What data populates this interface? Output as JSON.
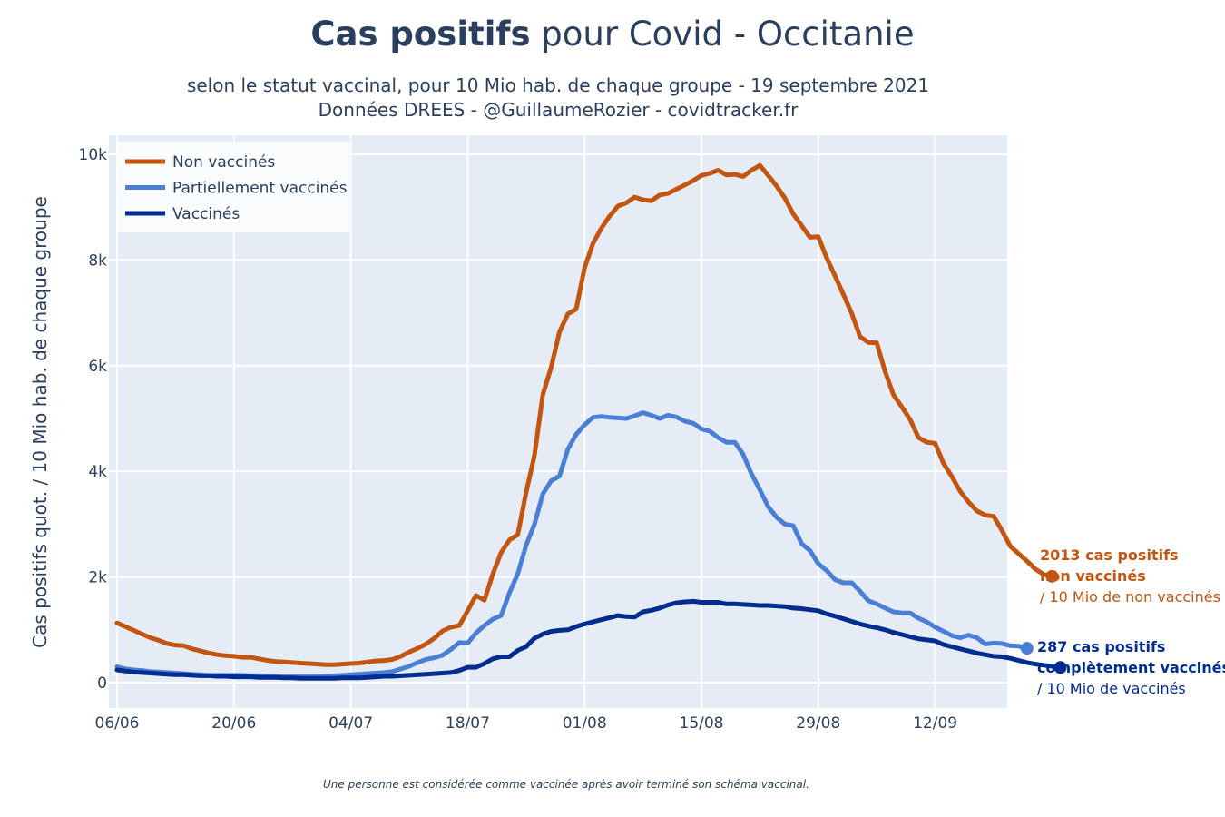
{
  "header": {
    "title_bold": "Cas positifs",
    "title_rest": " pour Covid - Occitanie",
    "subtitle_line1": "selon le statut vaccinal, pour 10 Mio hab. de chaque groupe - 19 septembre 2021",
    "subtitle_line2": "Données DREES - @GuillaumeRozier - covidtracker.fr"
  },
  "footnote": "Une personne est considérée comme vaccinée après avoir terminé son schéma vaccinal.",
  "annotations": {
    "non_vaccines": {
      "line1": "2013 cas positifs",
      "line2": "non vaccinés",
      "line3": "/ 10 Mio de non vaccinés",
      "color": "#c35510"
    },
    "vaccines": {
      "line1": "287 cas positifs",
      "line2": "complètement vaccinés",
      "line3": "/ 10 Mio de vaccinés",
      "color": "#002d8f"
    }
  },
  "chart_data": {
    "type": "line",
    "title": "Cas positifs pour Covid - Occitanie",
    "ylabel": "Cas positifs quot. / 10 Mio hab. de chaque groupe",
    "xlabel": "",
    "x_start": "06/06",
    "x_tick_labels": [
      "06/06",
      "20/06",
      "04/07",
      "18/07",
      "01/08",
      "15/08",
      "29/08",
      "12/09"
    ],
    "y_tick_labels": [
      "0",
      "2k",
      "4k",
      "6k",
      "8k",
      "10k"
    ],
    "y_ticks": [
      0,
      2000,
      4000,
      6000,
      8000,
      10000
    ],
    "ylim": [
      -400,
      10300
    ],
    "grid": true,
    "legend_position": "top-left",
    "plot_bg": "#e5ecf6",
    "series": [
      {
        "name": "Non vaccinés",
        "color": "#c35510",
        "values": [
          1130,
          1060,
          990,
          920,
          850,
          800,
          740,
          710,
          700,
          640,
          600,
          560,
          530,
          510,
          500,
          480,
          480,
          450,
          420,
          400,
          390,
          380,
          370,
          360,
          350,
          340,
          340,
          350,
          360,
          370,
          390,
          410,
          420,
          440,
          500,
          580,
          650,
          730,
          840,
          980,
          1050,
          1080,
          1360,
          1650,
          1560,
          2050,
          2460,
          2700,
          2800,
          3600,
          4300,
          5450,
          5970,
          6640,
          6980,
          7070,
          7850,
          8310,
          8600,
          8830,
          9020,
          9080,
          9190,
          9140,
          9120,
          9230,
          9260,
          9340,
          9420,
          9500,
          9600,
          9640,
          9700,
          9610,
          9620,
          9580,
          9700,
          9790,
          9600,
          9400,
          9170,
          8870,
          8650,
          8430,
          8440,
          8040,
          7700,
          7350,
          6990,
          6550,
          6440,
          6430,
          5890,
          5450,
          5220,
          4980,
          4640,
          4550,
          4530,
          4150,
          3900,
          3620,
          3420,
          3250,
          3170,
          3150,
          2880,
          2580,
          2440,
          2300,
          2150,
          2050,
          2013
        ]
      },
      {
        "name": "Partiellement vaccinés",
        "color": "#4a7fd8",
        "values": [
          300,
          260,
          240,
          230,
          210,
          200,
          190,
          180,
          170,
          160,
          150,
          140,
          140,
          140,
          140,
          140,
          130,
          130,
          120,
          120,
          110,
          110,
          110,
          110,
          110,
          120,
          130,
          140,
          150,
          160,
          170,
          180,
          190,
          210,
          260,
          310,
          380,
          440,
          470,
          520,
          630,
          760,
          750,
          940,
          1080,
          1200,
          1270,
          1700,
          2060,
          2600,
          3000,
          3570,
          3820,
          3910,
          4420,
          4700,
          4880,
          5020,
          5040,
          5020,
          5010,
          5000,
          5050,
          5110,
          5060,
          5000,
          5060,
          5030,
          4950,
          4910,
          4800,
          4760,
          4640,
          4550,
          4550,
          4320,
          3950,
          3650,
          3330,
          3130,
          3000,
          2970,
          2630,
          2500,
          2250,
          2120,
          1950,
          1890,
          1890,
          1730,
          1550,
          1490,
          1410,
          1340,
          1320,
          1320,
          1220,
          1150,
          1050,
          970,
          890,
          850,
          900,
          850,
          730,
          750,
          740,
          700,
          690,
          650
        ]
      },
      {
        "name": "Vaccinés",
        "color": "#002d8f",
        "values": [
          240,
          220,
          200,
          190,
          180,
          170,
          160,
          150,
          150,
          140,
          130,
          130,
          120,
          120,
          110,
          110,
          110,
          100,
          100,
          100,
          90,
          90,
          80,
          80,
          80,
          80,
          80,
          90,
          90,
          90,
          100,
          110,
          120,
          120,
          130,
          140,
          150,
          160,
          170,
          180,
          190,
          230,
          290,
          290,
          360,
          450,
          490,
          490,
          610,
          680,
          840,
          920,
          970,
          990,
          1000,
          1060,
          1110,
          1150,
          1190,
          1230,
          1270,
          1250,
          1240,
          1340,
          1370,
          1410,
          1470,
          1510,
          1530,
          1540,
          1520,
          1520,
          1520,
          1490,
          1490,
          1480,
          1470,
          1460,
          1460,
          1450,
          1440,
          1410,
          1400,
          1380,
          1360,
          1300,
          1260,
          1210,
          1160,
          1110,
          1070,
          1040,
          1000,
          950,
          910,
          870,
          830,
          810,
          790,
          720,
          680,
          640,
          600,
          560,
          530,
          500,
          490,
          460,
          420,
          380,
          350,
          330,
          310,
          287
        ]
      }
    ]
  }
}
